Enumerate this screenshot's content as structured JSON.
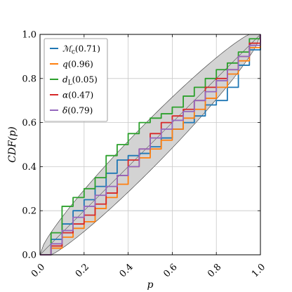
{
  "chart_data": {
    "type": "line",
    "xlabel": "p",
    "ylabel": "CDF(p)",
    "xlim": [
      0.0,
      1.0
    ],
    "ylim": [
      0.0,
      1.0
    ],
    "xticks": [
      "0.0",
      "0.2",
      "0.4",
      "0.6",
      "0.8",
      "1.0"
    ],
    "yticks": [
      "0.0",
      "0.2",
      "0.4",
      "0.6",
      "0.8",
      "1.0"
    ],
    "grid": true,
    "legend_position": "top-left",
    "band_color": "#d3d3d3",
    "series": [
      {
        "name": "Mc",
        "legend_label": "𝓜c(0.71)",
        "legend_symbol": "ℳ",
        "legend_sub": "c",
        "legend_value": "(0.71)",
        "color": "#1f77b4",
        "x": [
          0.0,
          0.05,
          0.1,
          0.15,
          0.2,
          0.25,
          0.3,
          0.35,
          0.4,
          0.45,
          0.5,
          0.55,
          0.6,
          0.65,
          0.7,
          0.75,
          0.8,
          0.85,
          0.9,
          0.95,
          1.0
        ],
        "y": [
          0.0,
          0.07,
          0.14,
          0.2,
          0.25,
          0.31,
          0.37,
          0.43,
          0.45,
          0.46,
          0.49,
          0.53,
          0.57,
          0.6,
          0.63,
          0.68,
          0.7,
          0.76,
          0.86,
          0.93,
          1.0
        ]
      },
      {
        "name": "q",
        "legend_label": "q(0.96)",
        "legend_symbol": "q",
        "legend_sub": "",
        "legend_value": "(0.96)",
        "color": "#ff7f0e",
        "x": [
          0.0,
          0.05,
          0.1,
          0.15,
          0.2,
          0.25,
          0.3,
          0.35,
          0.4,
          0.45,
          0.5,
          0.55,
          0.6,
          0.65,
          0.7,
          0.75,
          0.8,
          0.85,
          0.9,
          0.95,
          1.0
        ],
        "y": [
          0.0,
          0.03,
          0.08,
          0.12,
          0.15,
          0.21,
          0.26,
          0.32,
          0.4,
          0.44,
          0.48,
          0.52,
          0.57,
          0.62,
          0.66,
          0.71,
          0.76,
          0.82,
          0.88,
          0.94,
          1.0
        ]
      },
      {
        "name": "dL",
        "legend_label": "dL(0.05)",
        "legend_symbol": "d",
        "legend_sub": "L",
        "legend_value": "(0.05)",
        "color": "#2ca02c",
        "x": [
          0.0,
          0.05,
          0.1,
          0.15,
          0.2,
          0.25,
          0.3,
          0.35,
          0.4,
          0.45,
          0.5,
          0.55,
          0.6,
          0.65,
          0.7,
          0.75,
          0.8,
          0.85,
          0.9,
          0.95,
          1.0
        ],
        "y": [
          0.0,
          0.1,
          0.22,
          0.26,
          0.3,
          0.35,
          0.45,
          0.5,
          0.55,
          0.6,
          0.62,
          0.64,
          0.67,
          0.72,
          0.76,
          0.8,
          0.84,
          0.87,
          0.92,
          0.98,
          1.0
        ]
      },
      {
        "name": "alpha",
        "legend_label": "α(0.47)",
        "legend_symbol": "α",
        "legend_sub": "",
        "legend_value": "(0.47)",
        "color": "#d62728",
        "x": [
          0.0,
          0.05,
          0.1,
          0.15,
          0.2,
          0.25,
          0.3,
          0.35,
          0.4,
          0.45,
          0.5,
          0.55,
          0.6,
          0.65,
          0.7,
          0.75,
          0.8,
          0.85,
          0.9,
          0.95,
          1.0
        ],
        "y": [
          0.0,
          0.04,
          0.1,
          0.14,
          0.18,
          0.23,
          0.28,
          0.36,
          0.43,
          0.48,
          0.55,
          0.6,
          0.63,
          0.66,
          0.7,
          0.76,
          0.8,
          0.84,
          0.9,
          0.96,
          1.0
        ]
      },
      {
        "name": "delta",
        "legend_label": "δ(0.79)",
        "legend_symbol": "δ",
        "legend_sub": "",
        "legend_value": "(0.79)",
        "color": "#9467bd",
        "x": [
          0.0,
          0.05,
          0.1,
          0.15,
          0.2,
          0.25,
          0.3,
          0.35,
          0.4,
          0.45,
          0.5,
          0.55,
          0.6,
          0.65,
          0.7,
          0.75,
          0.8,
          0.85,
          0.9,
          0.95,
          1.0
        ],
        "y": [
          0.0,
          0.05,
          0.11,
          0.17,
          0.22,
          0.27,
          0.31,
          0.36,
          0.4,
          0.48,
          0.53,
          0.57,
          0.61,
          0.65,
          0.7,
          0.74,
          0.79,
          0.84,
          0.9,
          0.95,
          1.0
        ]
      }
    ]
  }
}
